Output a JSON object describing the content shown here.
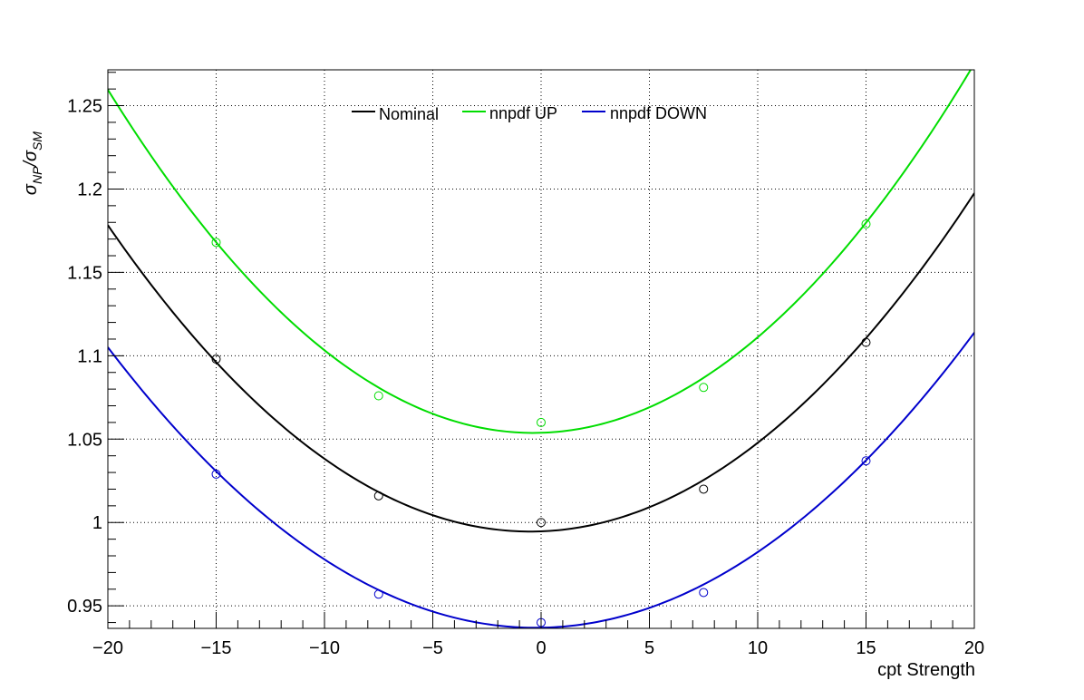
{
  "chart_data": {
    "type": "scatter",
    "xlabel": "cpt Strength",
    "ylabel": {
      "main": "σ",
      "sub1": "NP",
      "sep": "/σ",
      "sub2": "SM"
    },
    "xlim": [
      -20,
      20
    ],
    "ylim": [
      0.9365,
      1.2715
    ],
    "xticks": [
      -20,
      -15,
      -10,
      -5,
      0,
      5,
      10,
      15,
      20
    ],
    "xtick_labels": [
      "−20",
      "−15",
      "−10",
      "−5",
      "0",
      "5",
      "10",
      "15",
      "20"
    ],
    "yticks": [
      0.95,
      1.0,
      1.05,
      1.1,
      1.15,
      1.2,
      1.25
    ],
    "ytick_labels": [
      "0.95",
      "1",
      "1.05",
      "1.1",
      "1.15",
      "1.2",
      "1.25"
    ],
    "grid": true,
    "legend_position": "top-center",
    "series": [
      {
        "name": "Nominal",
        "color": "#000000",
        "points": {
          "x": [
            -15,
            -7.5,
            0,
            7.5,
            15
          ],
          "y": [
            1.098,
            1.016,
            1.0,
            1.02,
            1.108
          ]
        },
        "fit": {
          "a": 0.000483,
          "b": 0.00048,
          "c": 0.9947
        }
      },
      {
        "name": "nnpdf UP",
        "color": "#00dd00",
        "points": {
          "x": [
            -15,
            -7.5,
            0,
            7.5,
            15
          ],
          "y": [
            1.168,
            1.076,
            1.06,
            1.081,
            1.179
          ]
        },
        "fit": {
          "a": 0.000534,
          "b": 0.00039,
          "c": 1.0538
        }
      },
      {
        "name": "nnpdf DOWN",
        "color": "#0000cc",
        "points": {
          "x": [
            -15,
            -7.5,
            0,
            7.5,
            15
          ],
          "y": [
            1.029,
            0.957,
            0.94,
            0.958,
            1.037
          ]
        },
        "fit": {
          "a": 0.0004315,
          "b": 0.00022,
          "c": 0.9369
        }
      }
    ]
  }
}
